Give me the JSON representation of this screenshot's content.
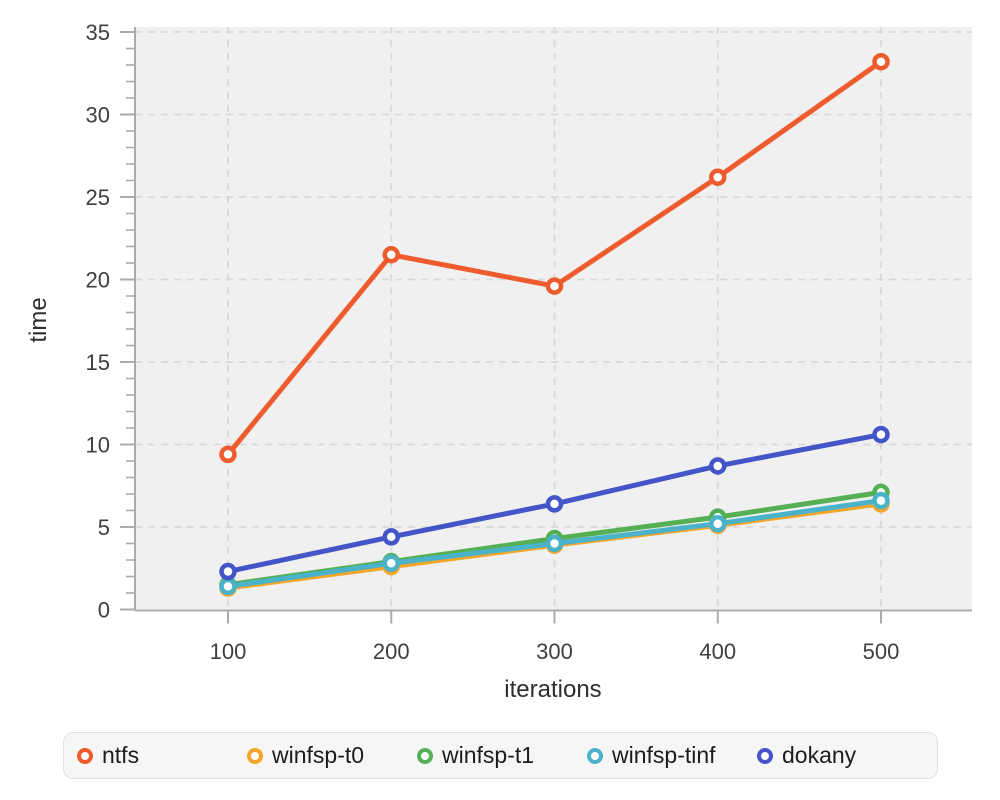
{
  "chart_data": {
    "type": "line",
    "title": "",
    "xlabel": "iterations",
    "ylabel": "time",
    "x": [
      100,
      200,
      300,
      400,
      500
    ],
    "series": [
      {
        "name": "ntfs",
        "color": "#ee5b2d",
        "values": [
          9.4,
          21.5,
          19.6,
          26.2,
          33.2
        ]
      },
      {
        "name": "winfsp-t0",
        "color": "#f4a62a",
        "values": [
          1.3,
          2.6,
          3.9,
          5.1,
          6.4
        ]
      },
      {
        "name": "winfsp-t1",
        "color": "#55b055",
        "values": [
          1.5,
          2.9,
          4.3,
          5.6,
          7.1
        ]
      },
      {
        "name": "winfsp-tinf",
        "color": "#4ab3c9",
        "values": [
          1.4,
          2.8,
          4.0,
          5.2,
          6.6
        ]
      },
      {
        "name": "dokany",
        "color": "#4355c7",
        "values": [
          2.3,
          4.4,
          6.4,
          8.7,
          10.6
        ]
      }
    ],
    "xticks": [
      100,
      200,
      300,
      400,
      500
    ],
    "yticks": [
      0,
      5,
      10,
      15,
      20,
      25,
      30,
      35
    ],
    "y_minor_tick_step": 1,
    "xlim": [
      43,
      555
    ],
    "ylim": [
      0,
      35
    ],
    "grid": true,
    "grid_style": "dashed",
    "legend_position": "bottom",
    "marker": "open-circle"
  },
  "style": {
    "plot_background": "#f0f0f0",
    "grid_color": "#d9d9d9",
    "axis_color": "#ababab",
    "tick_label_color": "#3f3f3f",
    "axis_label_color": "#2e2e2e",
    "legend_background": "#f6f6f6",
    "legend_border": "#e0e0e0",
    "legend_text_color": "#1c1c1c"
  }
}
